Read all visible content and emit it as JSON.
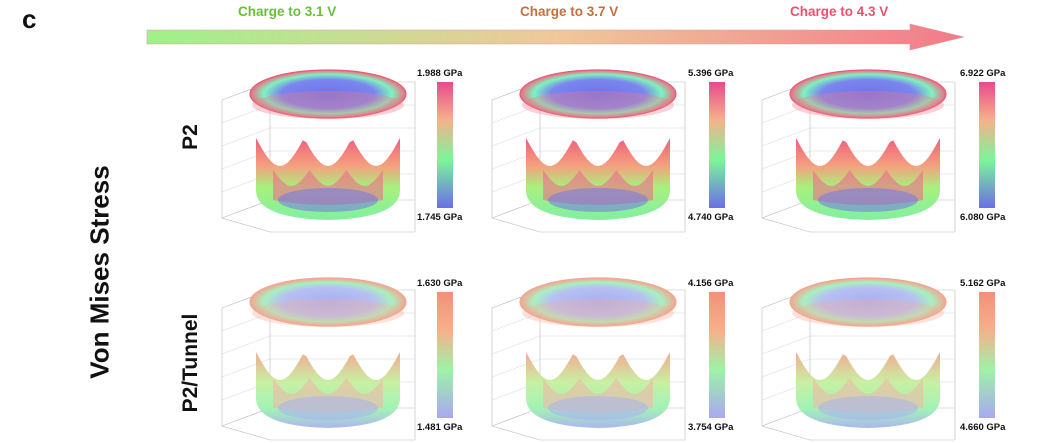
{
  "panel_letter": "c",
  "stages": [
    {
      "label": "Charge to 3.1 V",
      "color": "#6abf3a"
    },
    {
      "label": "Charge to 3.7 V",
      "color": "#c4703c"
    },
    {
      "label": "Charge to 4.3 V",
      "color": "#ef4f6c"
    }
  ],
  "y_label": "Von Mises Stress",
  "rows": [
    {
      "label": "P2",
      "colorbar": "vivid",
      "cells": [
        {
          "max": "1.988 GPa",
          "min": "1.745 GPa"
        },
        {
          "max": "5.396 GPa",
          "min": "4.740 GPa"
        },
        {
          "max": "6.922 GPa",
          "min": "6.080 GPa"
        }
      ]
    },
    {
      "label": "P2/Tunnel",
      "colorbar": "pastel",
      "cells": [
        {
          "max": "1.630 GPa",
          "min": "1.481 GPa"
        },
        {
          "max": "4.156 GPa",
          "min": "3.754 GPa"
        },
        {
          "max": "5.162 GPa",
          "min": "4.660 GPa"
        }
      ]
    }
  ],
  "colors": {
    "arrow_start": "#9ef28a",
    "arrow_end": "#f27a8a",
    "vivid_top": "#e64a8a",
    "vivid_mid": "#7cf59a",
    "vivid_bottom": "#6b6ee6",
    "pastel_top": "#f2907a",
    "pastel_mid": "#9ef2a8",
    "pastel_bottom": "#a8a8f0"
  }
}
